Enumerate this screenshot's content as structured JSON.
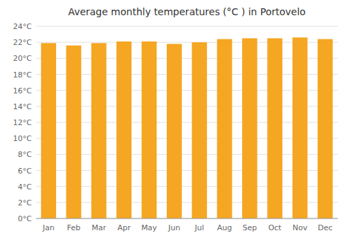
{
  "chart_data": {
    "type": "bar",
    "title": "Average monthly temperatures (°C ) in Portovelo",
    "categories": [
      "Jan",
      "Feb",
      "Mar",
      "Apr",
      "May",
      "Jun",
      "Jul",
      "Aug",
      "Sep",
      "Oct",
      "Nov",
      "Dec"
    ],
    "values": [
      21.9,
      21.6,
      21.9,
      22.1,
      22.1,
      21.8,
      22.0,
      22.4,
      22.5,
      22.5,
      22.6,
      22.4
    ],
    "color": "#F5A623",
    "ylim": [
      0,
      24
    ],
    "yticks": [
      {
        "value": 0,
        "label": "0°C"
      },
      {
        "value": 2,
        "label": "2°C"
      },
      {
        "value": 4,
        "label": "4°C"
      },
      {
        "value": 6,
        "label": "6°C"
      },
      {
        "value": 8,
        "label": "8°C"
      },
      {
        "value": 10,
        "label": "10°C"
      },
      {
        "value": 12,
        "label": "12°C"
      },
      {
        "value": 14,
        "label": "14°C"
      },
      {
        "value": 16,
        "label": "16°C"
      },
      {
        "value": 18,
        "label": "18°C"
      },
      {
        "value": 20,
        "label": "20°C"
      },
      {
        "value": 22,
        "label": "22°C"
      },
      {
        "value": 24,
        "label": "24°C"
      }
    ],
    "grid": true
  }
}
